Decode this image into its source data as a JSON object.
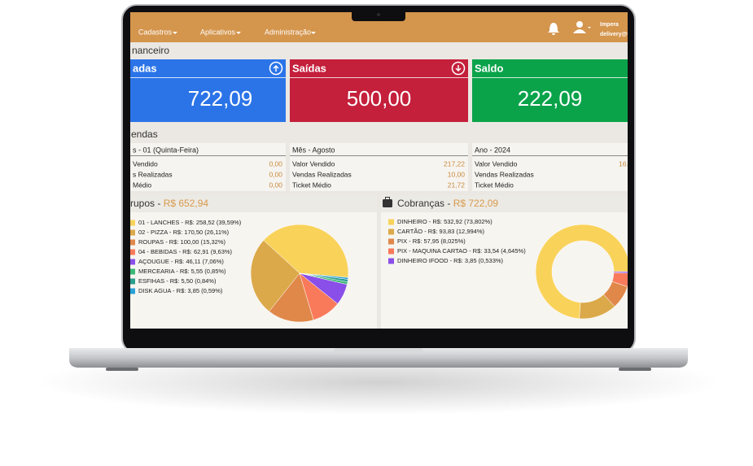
{
  "navbar": {
    "menu": [
      "Cadastros",
      "Aplicativos",
      "Administração"
    ],
    "user_name": "Impera",
    "user_email": "delivery@t"
  },
  "financeiro": {
    "title": "nanceiro",
    "cards": [
      {
        "title": "adas",
        "value": "722,09",
        "color": "#2b74e8"
      },
      {
        "title": "Saídas",
        "value": "500,00",
        "color": "#c41f3b"
      },
      {
        "title": "Saldo",
        "value": "222,09",
        "color": "#0aa34a"
      }
    ]
  },
  "vendas": {
    "title": "endas",
    "panels": [
      {
        "title": "s - 01 (Quinta-Feira)",
        "rows": [
          {
            "label": "Vendido",
            "value": "0,00"
          },
          {
            "label": "s Realizadas",
            "value": "0,00"
          },
          {
            "label": "Médio",
            "value": "0,00"
          }
        ]
      },
      {
        "title": "Mês - Agosto",
        "rows": [
          {
            "label": "Valor Vendido",
            "value": "217,22"
          },
          {
            "label": "Vendas Realizadas",
            "value": "10,00"
          },
          {
            "label": "Ticket Médio",
            "value": "21,72"
          }
        ]
      },
      {
        "title": "Ano - 2024",
        "rows": [
          {
            "label": "Valor Vendido",
            "value": "16."
          },
          {
            "label": "Vendas Realizadas"
          },
          {
            "label": "Ticket Médio"
          }
        ]
      }
    ]
  },
  "groups": {
    "title": "rupos - ",
    "total": "R$ 652,94",
    "items": [
      {
        "label": "01 - LANCHES - R$: 258,52 (39,59%)",
        "share": 39.59,
        "color": "#f9d25a"
      },
      {
        "label": "02 - PIZZA - R$: 170,50 (26,11%)",
        "share": 26.11,
        "color": "#dba94a"
      },
      {
        "label": "ROUPAS - R$: 100,00 (15,32%)",
        "share": 15.32,
        "color": "#e0884a"
      },
      {
        "label": "04 - BEBIDAS - R$: 62,91 (9,63%)",
        "share": 9.63,
        "color": "#f97a5a"
      },
      {
        "label": "AÇOUGUE - R$: 46,11 (7,06%)",
        "share": 7.06,
        "color": "#8a4fe8"
      },
      {
        "label": "MERCEARIA - R$: 5,55 (0,85%)",
        "share": 0.85,
        "color": "#3cb878"
      },
      {
        "label": "ESFIHAS - R$: 5,50 (0,84%)",
        "share": 0.84,
        "color": "#2a9d8f"
      },
      {
        "label": "DISK AGUA - R$: 3,85 (0,59%)",
        "share": 0.59,
        "color": "#2aa0d8"
      }
    ]
  },
  "payments": {
    "title": "Cobranças - ",
    "total": "R$ 722,09",
    "items": [
      {
        "label": "DINHEIRO - R$: 532,92 (73,802%)",
        "share": 73.802,
        "color": "#f9d25a"
      },
      {
        "label": "CARTÃO - R$: 93,83 (12,994%)",
        "share": 12.994,
        "color": "#dba94a"
      },
      {
        "label": "PIX - R$: 57,95 (8,025%)",
        "share": 8.025,
        "color": "#e0884a"
      },
      {
        "label": "PIX - MAQUINA CARTAO - R$: 33,54 (4,645%)",
        "share": 4.645,
        "color": "#f97a5a"
      },
      {
        "label": "DINHEIRO IFOOD - R$: 3,85 (0,533%)",
        "share": 0.533,
        "color": "#8a4fe8"
      }
    ]
  }
}
